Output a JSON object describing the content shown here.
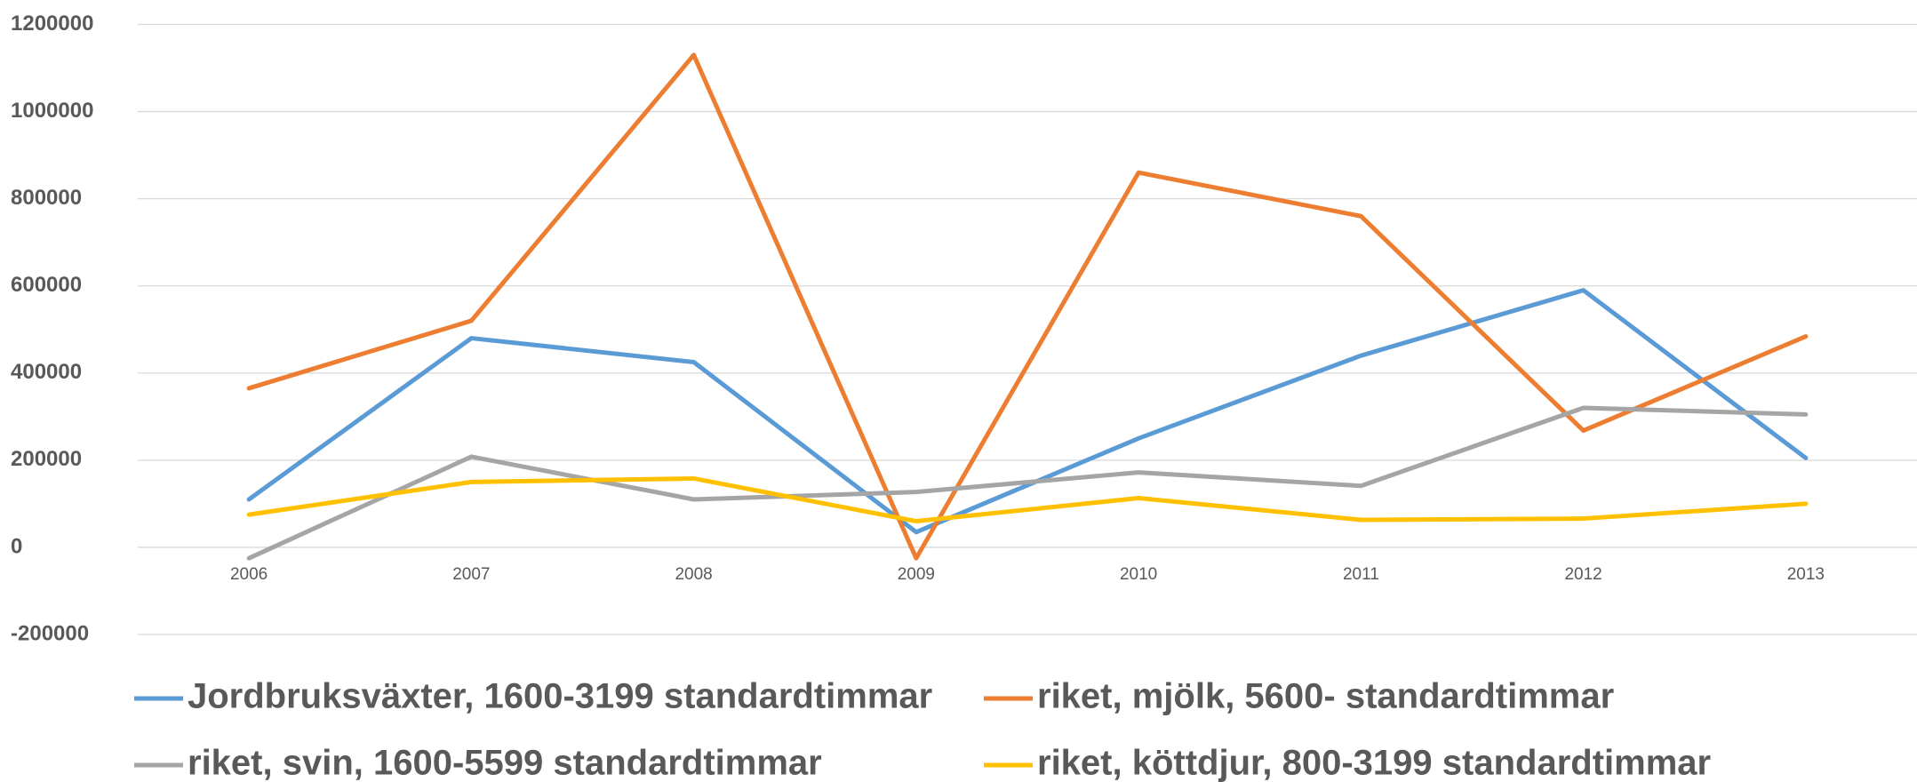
{
  "chart_data": {
    "type": "line",
    "categories": [
      "2006",
      "2007",
      "2008",
      "2009",
      "2010",
      "2011",
      "2012",
      "2013"
    ],
    "series": [
      {
        "name": "Jordbruksväxter, 1600-3199 standardtimmar",
        "color": "#5b9bd5",
        "values": [
          110000,
          480000,
          425000,
          35000,
          250000,
          440000,
          590000,
          205000
        ]
      },
      {
        "name": "riket, mjölk, 5600- standardtimmar",
        "color": "#ed7d31",
        "values": [
          365000,
          520000,
          1130000,
          -25000,
          860000,
          760000,
          268000,
          484000
        ]
      },
      {
        "name": "riket, svin, 1600-5599 standardtimmar",
        "color": "#a5a5a5",
        "values": [
          -25000,
          208000,
          110000,
          127000,
          172000,
          141000,
          320000,
          305000
        ]
      },
      {
        "name": "riket, köttdjur, 800-3199 standardtimmar",
        "color": "#ffc000",
        "values": [
          75000,
          150000,
          158000,
          60000,
          113000,
          63000,
          66000,
          100000
        ]
      }
    ],
    "ylim": [
      -200000,
      1200000
    ],
    "yticks": [
      -200000,
      0,
      200000,
      400000,
      600000,
      800000,
      1000000,
      1200000
    ],
    "grid": true,
    "legend": "bottom"
  }
}
